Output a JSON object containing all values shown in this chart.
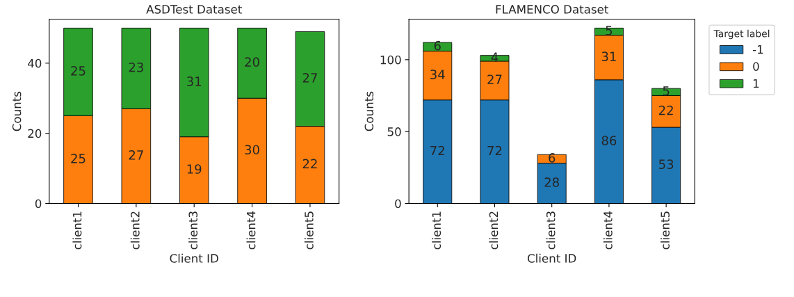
{
  "chart_data": [
    {
      "type": "bar",
      "title": "ASDTest Dataset",
      "xlabel": "Client ID",
      "ylabel": "Counts",
      "categories": [
        "client1",
        "client2",
        "client3",
        "client4",
        "client5"
      ],
      "stacked": true,
      "data_labels": true,
      "legend": false,
      "ylim": [
        0,
        52.5
      ],
      "yticks": [
        0,
        20,
        40
      ],
      "series": [
        {
          "color": "#ff7f0e",
          "values": [
            25,
            27,
            19,
            30,
            22
          ]
        },
        {
          "color": "#2ca02c",
          "values": [
            25,
            23,
            31,
            20,
            27
          ]
        }
      ]
    },
    {
      "type": "bar",
      "title": "FLAMENCO Dataset",
      "xlabel": "Client ID",
      "ylabel": "Counts",
      "categories": [
        "client1",
        "client2",
        "client3",
        "client4",
        "client5"
      ],
      "stacked": true,
      "data_labels": true,
      "legend": "right",
      "legend_title": "Target label",
      "ylim": [
        0,
        128.1
      ],
      "yticks": [
        0,
        50,
        100
      ],
      "series": [
        {
          "name": "-1",
          "color": "#1f77b4",
          "values": [
            72,
            72,
            28,
            86,
            53
          ]
        },
        {
          "name": "0",
          "color": "#ff7f0e",
          "values": [
            34,
            27,
            6,
            31,
            22
          ]
        },
        {
          "name": "1",
          "color": "#2ca02c",
          "values": [
            6,
            4,
            null,
            5,
            5
          ]
        }
      ]
    }
  ]
}
